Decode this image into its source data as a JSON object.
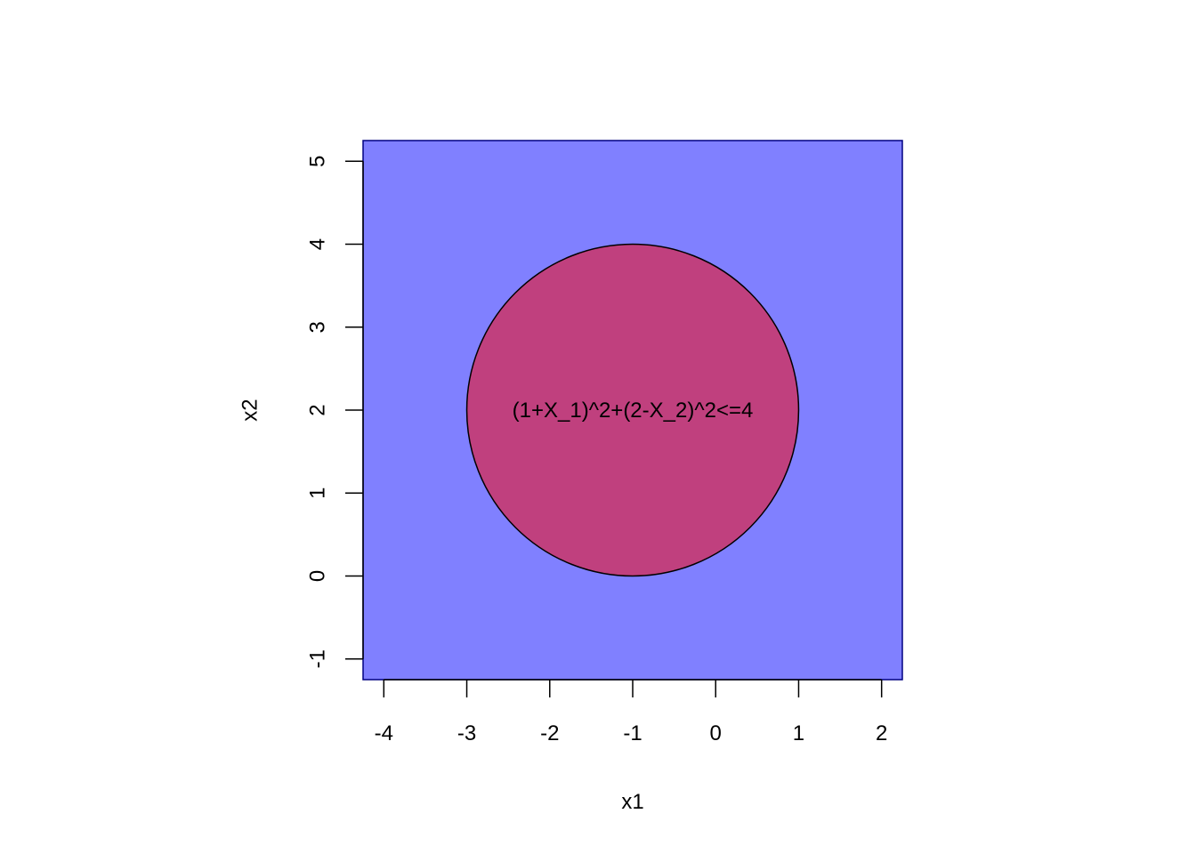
{
  "chart_data": {
    "type": "region",
    "title": "",
    "xlabel": "x1",
    "ylabel": "x2",
    "xlim": [
      -4.25,
      2.25
    ],
    "ylim": [
      -1.25,
      5.25
    ],
    "x_ticks": [
      "-4",
      "-3",
      "-2",
      "-1",
      "0",
      "1",
      "2"
    ],
    "y_ticks": [
      "-1",
      "0",
      "1",
      "2",
      "3",
      "4",
      "5"
    ],
    "x_tick_values": [
      -4,
      -3,
      -2,
      -1,
      0,
      1,
      2
    ],
    "y_tick_values": [
      -1,
      0,
      1,
      2,
      3,
      4,
      5
    ],
    "background_region": {
      "fill": "#8080ff",
      "stroke": "#000080"
    },
    "circle": {
      "center": [
        -1,
        2
      ],
      "radius": 2,
      "fill": "#c0407e",
      "stroke": "#000000",
      "label": "(1+X_1)^2+(2-X_2)^2<=4"
    },
    "grid": false
  }
}
